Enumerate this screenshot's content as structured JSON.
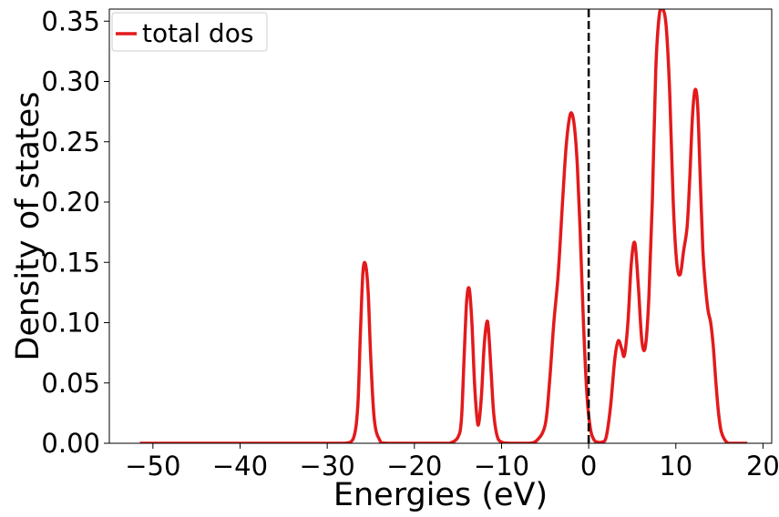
{
  "chart_data": {
    "type": "line",
    "xlabel": "Energies (eV)",
    "ylabel": "Density of states",
    "xlim": [
      -55,
      21
    ],
    "ylim": [
      0,
      0.36
    ],
    "xticks": [
      -50,
      -40,
      -30,
      -20,
      -10,
      0,
      10,
      20
    ],
    "xtick_labels": [
      "−50",
      "−40",
      "−30",
      "−20",
      "−10",
      "0",
      "10",
      "20"
    ],
    "yticks": [
      0,
      0.05,
      0.1,
      0.15,
      0.2,
      0.25,
      0.3,
      0.35
    ],
    "ytick_labels": [
      "0.00",
      "0.05",
      "0.10",
      "0.15",
      "0.20",
      "0.25",
      "0.30",
      "0.35"
    ],
    "grid": false,
    "legend_position": "top-left",
    "fermi_level": {
      "x": 0,
      "style": "dashed",
      "color": "#000000"
    },
    "series": [
      {
        "name": "total dos",
        "color": "#e31a1c",
        "x": [
          -51.5,
          -30,
          -28,
          -27,
          -26.5,
          -26.2,
          -25.9,
          -25.6,
          -25.3,
          -25.0,
          -24.6,
          -24,
          -23,
          -17,
          -16,
          -15,
          -14.6,
          -14.3,
          -14.0,
          -13.7,
          -13.4,
          -13.1,
          -12.8,
          -12.6,
          -12.3,
          -12.0,
          -11.7,
          -11.5,
          -11.2,
          -10.9,
          -10.5,
          -10.0,
          -9,
          -7,
          -6,
          -5,
          -4.5,
          -4,
          -3.5,
          -3,
          -2.6,
          -2.2,
          -1.9,
          -1.6,
          -1.3,
          -1.0,
          -0.6,
          -0.2,
          0.2,
          0.6,
          1.0,
          1.5,
          2.0,
          2.5,
          3.0,
          3.4,
          3.8,
          4.1,
          4.5,
          4.9,
          5.3,
          5.7,
          6.1,
          6.5,
          6.9,
          7.3,
          7.7,
          8.1,
          8.5,
          8.9,
          9.3,
          9.7,
          10.1,
          10.5,
          10.9,
          11.3,
          11.6,
          11.9,
          12.2,
          12.5,
          12.8,
          13.1,
          13.4,
          13.7,
          14.0,
          14.3,
          14.6,
          14.9,
          15.2,
          15.6,
          16.0,
          16.5,
          17,
          18.2
        ],
        "values": [
          0,
          0,
          0,
          0.004,
          0.03,
          0.09,
          0.142,
          0.148,
          0.125,
          0.07,
          0.02,
          0.003,
          0,
          0,
          0,
          0.005,
          0.02,
          0.07,
          0.118,
          0.128,
          0.1,
          0.05,
          0.02,
          0.017,
          0.04,
          0.08,
          0.1,
          0.095,
          0.06,
          0.025,
          0.006,
          0.001,
          0,
          0,
          0.002,
          0.015,
          0.05,
          0.1,
          0.14,
          0.2,
          0.245,
          0.27,
          0.273,
          0.26,
          0.23,
          0.18,
          0.1,
          0.04,
          0.012,
          0.003,
          0.001,
          0.001,
          0.005,
          0.03,
          0.07,
          0.085,
          0.078,
          0.073,
          0.1,
          0.15,
          0.166,
          0.13,
          0.085,
          0.08,
          0.12,
          0.2,
          0.31,
          0.355,
          0.36,
          0.345,
          0.29,
          0.2,
          0.15,
          0.14,
          0.16,
          0.18,
          0.22,
          0.27,
          0.293,
          0.28,
          0.22,
          0.16,
          0.13,
          0.11,
          0.1,
          0.08,
          0.05,
          0.025,
          0.01,
          0.003,
          0,
          0,
          0,
          0
        ]
      }
    ]
  }
}
